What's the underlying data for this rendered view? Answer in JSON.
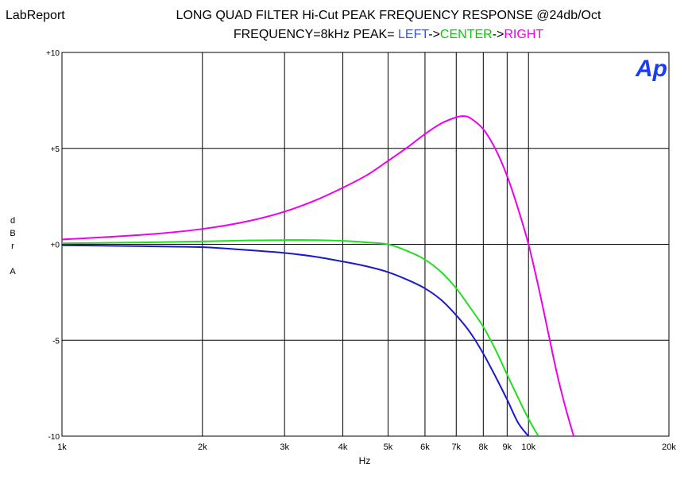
{
  "app_label": "LabReport",
  "title_line1": "LONG QUAD FILTER Hi-Cut PEAK FREQUENCY RESPONSE @24db/Oct",
  "title_line2_prefix": "FREQUENCY=8kHz PEAK=",
  "title_line2_parts": [
    {
      "text": "LEFT",
      "color": "#3355ff"
    },
    {
      "text": "->",
      "color": "#000000"
    },
    {
      "text": "CENTER",
      "color": "#00cc00"
    },
    {
      "text": "->",
      "color": "#000000"
    },
    {
      "text": "RIGHT",
      "color": "#ee00ee"
    }
  ],
  "logo_text": "Ap",
  "logo_color": "#1a3cff",
  "ylabel_letters": [
    "d",
    "B",
    "r",
    "",
    "A"
  ],
  "chart_data": {
    "type": "line",
    "title": "LONG QUAD FILTER Hi-Cut PEAK FREQUENCY RESPONSE @24db/Oct",
    "subtitle": "FREQUENCY=8kHz PEAK=LEFT->CENTER->RIGHT",
    "xlabel": "Hz",
    "ylabel": "dBr A",
    "x_scale": "log",
    "xlim": [
      1000,
      20000
    ],
    "ylim": [
      -10,
      10
    ],
    "grid": true,
    "x_ticks": [
      1000,
      2000,
      3000,
      4000,
      5000,
      6000,
      7000,
      8000,
      9000,
      10000,
      20000
    ],
    "x_tick_labels": [
      "1k",
      "2k",
      "3k",
      "4k",
      "5k",
      "6k",
      "7k",
      "8k",
      "9k",
      "10k",
      "20k"
    ],
    "y_ticks": [
      10,
      5,
      0,
      -5,
      -10
    ],
    "y_tick_labels": [
      "+10",
      "+5",
      "+0",
      "-5",
      "-10"
    ],
    "series": [
      {
        "name": "LEFT",
        "color": "#1a1acc",
        "x": [
          1000,
          1500,
          2000,
          2500,
          3000,
          3500,
          4000,
          4500,
          5000,
          5500,
          6000,
          6500,
          7000,
          7500,
          8000,
          8500,
          9000,
          9500,
          10000
        ],
        "y": [
          -0.05,
          -0.1,
          -0.15,
          -0.3,
          -0.45,
          -0.65,
          -0.9,
          -1.15,
          -1.45,
          -1.85,
          -2.3,
          -2.9,
          -3.7,
          -4.6,
          -5.7,
          -6.9,
          -8.1,
          -9.3,
          -10
        ]
      },
      {
        "name": "CENTER",
        "color": "#22dd22",
        "x": [
          1000,
          1500,
          2000,
          2500,
          3000,
          3500,
          4000,
          4500,
          5000,
          5500,
          6000,
          6500,
          7000,
          7500,
          8000,
          8500,
          9000,
          9500,
          10000,
          10500
        ],
        "y": [
          0.05,
          0.1,
          0.15,
          0.2,
          0.22,
          0.22,
          0.18,
          0.1,
          0.0,
          -0.35,
          -0.8,
          -1.45,
          -2.3,
          -3.3,
          -4.3,
          -5.5,
          -6.8,
          -8.0,
          -9.1,
          -10
        ]
      },
      {
        "name": "RIGHT",
        "color": "#ee00ee",
        "x": [
          1000,
          1500,
          2000,
          2500,
          3000,
          3500,
          4000,
          4500,
          5000,
          5500,
          6000,
          6500,
          7000,
          7250,
          7500,
          8000,
          8500,
          9000,
          9500,
          10000,
          10500,
          11000,
          11500,
          12000,
          12500
        ],
        "y": [
          0.25,
          0.5,
          0.8,
          1.2,
          1.7,
          2.3,
          2.95,
          3.6,
          4.35,
          5.05,
          5.75,
          6.3,
          6.62,
          6.68,
          6.58,
          6.0,
          4.95,
          3.55,
          1.85,
          0.0,
          -2.2,
          -4.5,
          -6.7,
          -8.5,
          -10
        ]
      }
    ]
  }
}
